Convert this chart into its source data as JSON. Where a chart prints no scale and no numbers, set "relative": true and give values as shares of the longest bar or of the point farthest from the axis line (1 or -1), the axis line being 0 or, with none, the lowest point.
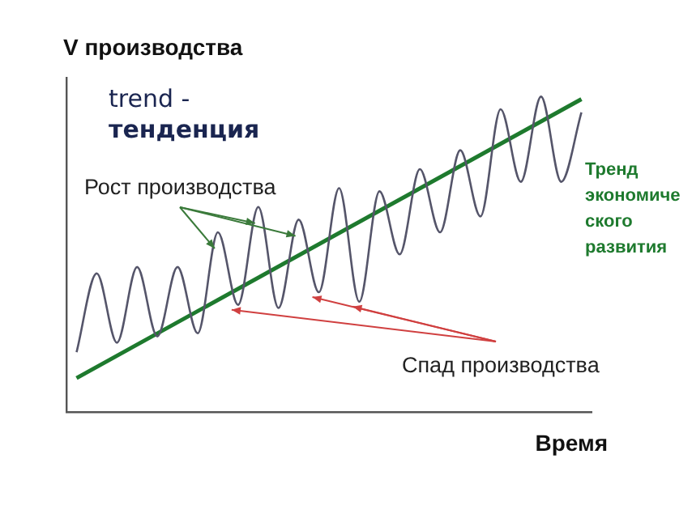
{
  "chart_data": {
    "type": "line",
    "relative": true,
    "xlabel": "Время",
    "ylabel": "V производства",
    "categories": [
      null,
      null,
      null,
      null,
      null,
      null,
      null,
      null,
      null,
      null,
      null,
      null,
      null,
      null,
      null,
      null,
      null,
      null,
      null,
      null,
      null,
      null,
      null,
      null,
      null,
      null
    ],
    "series": [
      {
        "color": "#55556a",
        "values": [
          0.19,
          0.44,
          0.22,
          0.46,
          0.24,
          0.46,
          0.25,
          0.57,
          0.34,
          0.65,
          0.33,
          0.61,
          0.38,
          0.71,
          0.35,
          0.7,
          0.5,
          0.77,
          0.57,
          0.83,
          0.62,
          0.96,
          0.73,
          1.0,
          0.73,
          0.95
        ]
      },
      {
        "name": "Тренд экономического развития",
        "color": "#1e7a2e",
        "values": [
          0.108,
          null,
          null,
          null,
          null,
          null,
          null,
          null,
          null,
          null,
          null,
          null,
          null,
          null,
          null,
          null,
          null,
          null,
          null,
          null,
          null,
          null,
          null,
          null,
          null,
          0.992
        ]
      }
    ],
    "annotations": [
      "trend - тенденция",
      "Рост производства",
      "Спад производства"
    ],
    "legend": false,
    "grid": false,
    "marker": "none"
  }
}
